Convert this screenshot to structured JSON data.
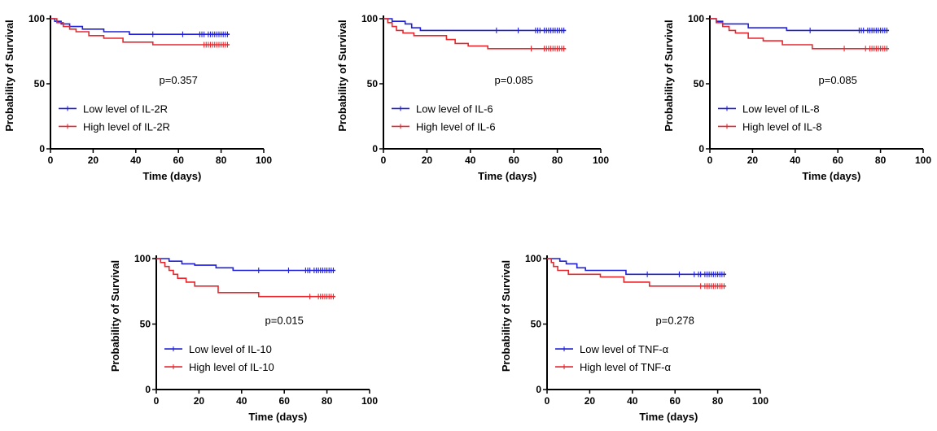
{
  "colors": {
    "low": "#1f1fdc",
    "high": "#e8262d",
    "axis": "#000000"
  },
  "chart_data": [
    {
      "type": "line",
      "title": "",
      "xlabel": "Time (days)",
      "ylabel": "Probability of Survival",
      "xlim": [
        0,
        100
      ],
      "ylim": [
        0,
        100
      ],
      "xticks": [
        "0",
        "20",
        "40",
        "60",
        "80",
        "100"
      ],
      "yticks": [
        "0",
        "50",
        "100"
      ],
      "pvalue": "p=0.357",
      "grid": false,
      "legend_position": "bottom-left",
      "series": [
        {
          "name": "Low level of IL-2R",
          "color": "#1f1fdc",
          "steps": [
            [
              0,
              100
            ],
            [
              2,
              98
            ],
            [
              5,
              96
            ],
            [
              9,
              94
            ],
            [
              15,
              92
            ],
            [
              25,
              90
            ],
            [
              37,
              88
            ],
            [
              84,
              88
            ]
          ],
          "censored": [
            48,
            62,
            70,
            71,
            72,
            74,
            75,
            76,
            77,
            78,
            79,
            80,
            81,
            82,
            83
          ]
        },
        {
          "name": "High level of IL-2R",
          "color": "#e8262d",
          "steps": [
            [
              0,
              100
            ],
            [
              3,
              97
            ],
            [
              6,
              94
            ],
            [
              9,
              92
            ],
            [
              12,
              90
            ],
            [
              18,
              87
            ],
            [
              25,
              85
            ],
            [
              34,
              82
            ],
            [
              48,
              80
            ],
            [
              84,
              80
            ]
          ],
          "censored": [
            72,
            73,
            74,
            75,
            76,
            77,
            78,
            79,
            80,
            81,
            82,
            83
          ]
        }
      ]
    },
    {
      "type": "line",
      "title": "",
      "xlabel": "Time (days)",
      "ylabel": "Probability of Survival",
      "xlim": [
        0,
        100
      ],
      "ylim": [
        0,
        100
      ],
      "xticks": [
        "0",
        "20",
        "40",
        "60",
        "80",
        "100"
      ],
      "yticks": [
        "0",
        "50",
        "100"
      ],
      "pvalue": "p=0.085",
      "grid": false,
      "legend_position": "bottom-left",
      "series": [
        {
          "name": "Low level of IL-6",
          "color": "#1f1fdc",
          "steps": [
            [
              0,
              100
            ],
            [
              4,
              98
            ],
            [
              10,
              96
            ],
            [
              13,
              93
            ],
            [
              17,
              91
            ],
            [
              84,
              91
            ]
          ],
          "censored": [
            52,
            62,
            70,
            71,
            72,
            74,
            75,
            76,
            77,
            78,
            79,
            80,
            81,
            82,
            83
          ]
        },
        {
          "name": "High level of IL-6",
          "color": "#e8262d",
          "steps": [
            [
              0,
              100
            ],
            [
              2,
              97
            ],
            [
              4,
              94
            ],
            [
              6,
              91
            ],
            [
              9,
              89
            ],
            [
              14,
              87
            ],
            [
              29,
              84
            ],
            [
              33,
              81
            ],
            [
              39,
              79
            ],
            [
              48,
              77
            ],
            [
              84,
              77
            ]
          ],
          "censored": [
            68,
            74,
            75,
            76,
            77,
            78,
            79,
            80,
            81,
            82,
            83
          ]
        }
      ]
    },
    {
      "type": "line",
      "title": "",
      "xlabel": "Time (days)",
      "ylabel": "Probability of Survival",
      "xlim": [
        0,
        100
      ],
      "ylim": [
        0,
        100
      ],
      "xticks": [
        "0",
        "20",
        "40",
        "60",
        "80",
        "100"
      ],
      "yticks": [
        "0",
        "50",
        "100"
      ],
      "pvalue": "p=0.085",
      "grid": false,
      "legend_position": "bottom-left",
      "series": [
        {
          "name": "Low level of IL-8",
          "color": "#1f1fdc",
          "steps": [
            [
              0,
              100
            ],
            [
              3,
              98
            ],
            [
              6,
              96
            ],
            [
              18,
              93
            ],
            [
              36,
              91
            ],
            [
              84,
              91
            ]
          ],
          "censored": [
            47,
            70,
            71,
            72,
            74,
            75,
            76,
            77,
            78,
            79,
            80,
            81,
            82,
            83
          ]
        },
        {
          "name": "High level of IL-8",
          "color": "#e8262d",
          "steps": [
            [
              0,
              100
            ],
            [
              3,
              97
            ],
            [
              6,
              94
            ],
            [
              9,
              91
            ],
            [
              12,
              89
            ],
            [
              18,
              85
            ],
            [
              25,
              83
            ],
            [
              34,
              80
            ],
            [
              48,
              77
            ],
            [
              84,
              77
            ]
          ],
          "censored": [
            63,
            73,
            75,
            76,
            77,
            78,
            79,
            80,
            81,
            82,
            83
          ]
        }
      ]
    },
    {
      "type": "line",
      "title": "",
      "xlabel": "Time (days)",
      "ylabel": "Probability of Survival",
      "xlim": [
        0,
        100
      ],
      "ylim": [
        0,
        100
      ],
      "xticks": [
        "0",
        "20",
        "40",
        "60",
        "80",
        "100"
      ],
      "yticks": [
        "0",
        "50",
        "100"
      ],
      "pvalue": "p=0.015",
      "grid": false,
      "legend_position": "bottom-left",
      "series": [
        {
          "name": "Low level of IL-10",
          "color": "#1f1fdc",
          "steps": [
            [
              0,
              100
            ],
            [
              6,
              98
            ],
            [
              12,
              96
            ],
            [
              18,
              95
            ],
            [
              28,
              93
            ],
            [
              36,
              91
            ],
            [
              84,
              91
            ]
          ],
          "censored": [
            48,
            62,
            70,
            71,
            72,
            74,
            75,
            76,
            77,
            78,
            79,
            80,
            81,
            82,
            83
          ]
        },
        {
          "name": "High level of IL-10",
          "color": "#e8262d",
          "steps": [
            [
              0,
              100
            ],
            [
              2,
              97
            ],
            [
              4,
              94
            ],
            [
              6,
              91
            ],
            [
              8,
              88
            ],
            [
              10,
              85
            ],
            [
              14,
              82
            ],
            [
              18,
              79
            ],
            [
              29,
              74
            ],
            [
              48,
              71
            ],
            [
              84,
              71
            ]
          ],
          "censored": [
            72,
            76,
            77,
            78,
            79,
            80,
            81,
            82,
            83
          ]
        }
      ]
    },
    {
      "type": "line",
      "title": "",
      "xlabel": "Time (days)",
      "ylabel": "Probability of Survival",
      "xlim": [
        0,
        100
      ],
      "ylim": [
        0,
        100
      ],
      "xticks": [
        "0",
        "20",
        "40",
        "60",
        "80",
        "100"
      ],
      "yticks": [
        "0",
        "50",
        "100"
      ],
      "pvalue": "p=0.278",
      "grid": false,
      "legend_position": "bottom-left",
      "series": [
        {
          "name": "Low level of TNF-α",
          "color": "#1f1fdc",
          "steps": [
            [
              0,
              100
            ],
            [
              6,
              98
            ],
            [
              9,
              96
            ],
            [
              14,
              93
            ],
            [
              18,
              91
            ],
            [
              37,
              88
            ],
            [
              84,
              88
            ]
          ],
          "censored": [
            47,
            62,
            69,
            71,
            72,
            74,
            75,
            76,
            77,
            78,
            79,
            80,
            81,
            82,
            83
          ]
        },
        {
          "name": "High level of TNF-α",
          "color": "#e8262d",
          "steps": [
            [
              0,
              100
            ],
            [
              2,
              97
            ],
            [
              3,
              94
            ],
            [
              5,
              91
            ],
            [
              10,
              88
            ],
            [
              25,
              86
            ],
            [
              36,
              82
            ],
            [
              48,
              79
            ],
            [
              84,
              79
            ]
          ],
          "censored": [
            72,
            74,
            75,
            76,
            77,
            78,
            79,
            80,
            81,
            82,
            83
          ]
        }
      ]
    }
  ]
}
